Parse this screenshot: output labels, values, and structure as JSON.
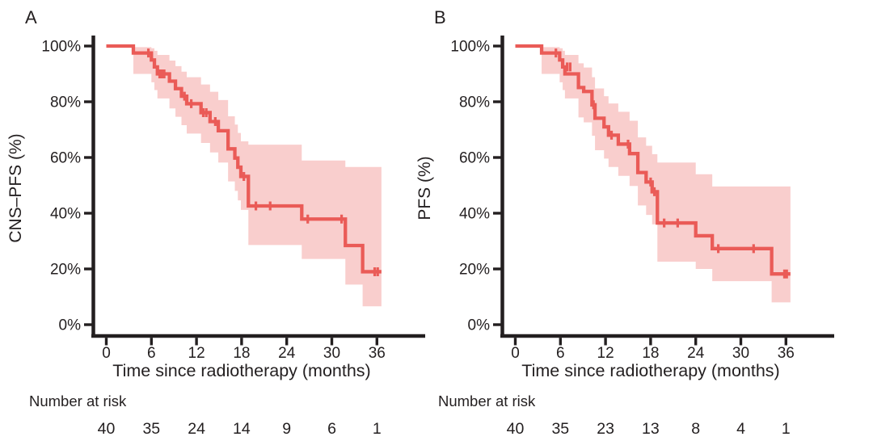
{
  "figure": {
    "background": "#ffffff",
    "text_color": "#231f20",
    "curve_color": "#ea5b57",
    "band_color": "#f9cecd",
    "y_tick_labels": [
      "100%",
      "80%",
      "60%",
      "40%",
      "20%",
      "0%"
    ],
    "x_tick_labels": [
      "0",
      "6",
      "12",
      "18",
      "24",
      "30",
      "36"
    ]
  },
  "chart_data": [
    {
      "type": "line",
      "subtype": "kaplan-meier-step-curve-with-confidence-band",
      "panel": "A",
      "ylabel": "CNS–PFS (%)",
      "xlabel": "Time since radiotherapy (months)",
      "risk_label": "Number at risk",
      "xlim": [
        0,
        38
      ],
      "ylim": [
        0,
        100
      ],
      "x_ticks": [
        0,
        6,
        12,
        18,
        24,
        30,
        36
      ],
      "y_ticks": [
        100,
        80,
        60,
        40,
        20,
        0
      ],
      "curve_end": 36.6,
      "steps": [
        [
          0,
          100
        ],
        [
          3.6,
          97.5
        ],
        [
          6.0,
          95
        ],
        [
          6.4,
          92.5
        ],
        [
          6.8,
          90
        ],
        [
          8.4,
          87.4
        ],
        [
          9.2,
          84.7
        ],
        [
          10.0,
          82.0
        ],
        [
          10.7,
          79.3
        ],
        [
          12.6,
          76.1
        ],
        [
          13.8,
          72.9
        ],
        [
          14.9,
          69.6
        ],
        [
          16.2,
          63.1
        ],
        [
          17.1,
          59.8
        ],
        [
          17.5,
          56.5
        ],
        [
          17.9,
          53.2
        ],
        [
          18.9,
          42.6
        ],
        [
          26.0,
          37.9
        ],
        [
          31.8,
          28.4
        ],
        [
          34.1,
          19.0
        ]
      ],
      "censors": [
        [
          5.6,
          97.5
        ],
        [
          7.1,
          90
        ],
        [
          7.4,
          90
        ],
        [
          7.7,
          90
        ],
        [
          10.4,
          82.0
        ],
        [
          11.3,
          79.3
        ],
        [
          12.9,
          76.1
        ],
        [
          13.3,
          76.1
        ],
        [
          14.5,
          72.9
        ],
        [
          18.3,
          53.2
        ],
        [
          19.9,
          42.6
        ],
        [
          21.8,
          42.6
        ],
        [
          26.8,
          37.9
        ],
        [
          31.3,
          37.9
        ],
        [
          35.7,
          19.0
        ],
        [
          36.1,
          19.0
        ]
      ],
      "band": {
        "t": [
          3.6,
          6.0,
          6.4,
          6.8,
          8.4,
          9.2,
          10.0,
          10.7,
          12.6,
          13.8,
          14.9,
          16.2,
          17.1,
          17.5,
          17.9,
          18.9,
          26.0,
          31.8,
          34.1
        ],
        "upper": [
          99.6,
          99.2,
          98.3,
          96.8,
          94.8,
          92.8,
          90.8,
          88.8,
          86.2,
          83.6,
          80.6,
          74.8,
          71.8,
          68.8,
          65.8,
          64.6,
          58.9,
          56.6,
          56.6
        ],
        "lower": [
          90.0,
          87.0,
          84.2,
          81.2,
          77.6,
          74.6,
          71.6,
          68.6,
          65.2,
          61.8,
          58.2,
          51.4,
          48.0,
          44.6,
          41.2,
          28.6,
          23.6,
          14.4,
          6.6
        ]
      },
      "number_at_risk": [
        "40",
        "35",
        "24",
        "14",
        "9",
        "6",
        "1"
      ]
    },
    {
      "type": "line",
      "subtype": "kaplan-meier-step-curve-with-confidence-band",
      "panel": "B",
      "ylabel": "PFS (%)",
      "xlabel": "Time since radiotherapy (months)",
      "risk_label": "Number at risk",
      "xlim": [
        0,
        38
      ],
      "ylim": [
        0,
        100
      ],
      "x_ticks": [
        0,
        6,
        12,
        18,
        24,
        30,
        36
      ],
      "y_ticks": [
        100,
        80,
        60,
        40,
        20,
        0
      ],
      "curve_end": 36.6,
      "steps": [
        [
          0,
          100
        ],
        [
          3.5,
          97.5
        ],
        [
          5.9,
          95
        ],
        [
          6.3,
          92.5
        ],
        [
          6.6,
          90
        ],
        [
          8.4,
          85.1
        ],
        [
          9.1,
          83.7
        ],
        [
          10.2,
          78.9
        ],
        [
          10.6,
          74.1
        ],
        [
          11.8,
          71.0
        ],
        [
          12.4,
          68.0
        ],
        [
          13.7,
          64.8
        ],
        [
          15.2,
          61.4
        ],
        [
          16.3,
          54.6
        ],
        [
          17.4,
          51.2
        ],
        [
          18.2,
          47.7
        ],
        [
          18.9,
          36.5
        ],
        [
          24.0,
          31.9
        ],
        [
          26.2,
          27.3
        ],
        [
          34.1,
          18.2
        ]
      ],
      "censors": [
        [
          5.4,
          97.5
        ],
        [
          6.9,
          92.5
        ],
        [
          7.3,
          92.5
        ],
        [
          10.4,
          78.9
        ],
        [
          12.8,
          68.0
        ],
        [
          15.0,
          64.8
        ],
        [
          18.0,
          51.2
        ],
        [
          18.5,
          47.7
        ],
        [
          19.8,
          36.5
        ],
        [
          21.6,
          36.5
        ],
        [
          27.0,
          27.3
        ],
        [
          31.7,
          27.3
        ],
        [
          35.8,
          18.2
        ],
        [
          36.1,
          18.2
        ]
      ],
      "band": {
        "t": [
          3.5,
          5.9,
          6.3,
          6.6,
          8.4,
          9.1,
          10.2,
          10.6,
          11.8,
          12.4,
          13.7,
          15.2,
          16.3,
          17.4,
          18.2,
          18.9,
          24.0,
          26.2,
          34.1
        ],
        "upper": [
          99.6,
          99.2,
          98.3,
          96.8,
          93.8,
          92.3,
          88.8,
          84.8,
          82.0,
          79.4,
          76.4,
          73.2,
          67.2,
          64.2,
          61.2,
          58.2,
          54.0,
          49.6,
          49.6
        ],
        "lower": [
          90.0,
          87.0,
          84.2,
          81.2,
          74.4,
          72.6,
          67.8,
          62.6,
          59.6,
          56.6,
          53.4,
          49.8,
          42.8,
          39.4,
          36.0,
          22.6,
          20.0,
          15.6,
          8.0
        ]
      },
      "number_at_risk": [
        "40",
        "35",
        "23",
        "13",
        "8",
        "4",
        "1"
      ]
    }
  ]
}
